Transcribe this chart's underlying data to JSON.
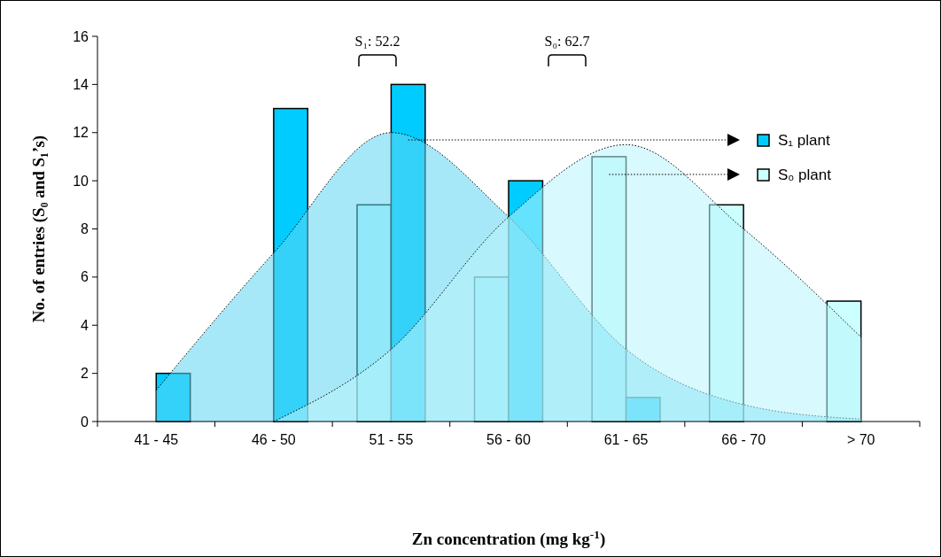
{
  "chart_data": {
    "type": "bar",
    "xlabel": "Zn concentration (mg kg$^{-1}$)",
    "ylabel": "No. of entries (S₀ and S₁’s)",
    "categories": [
      "41 - 45",
      "46 - 50",
      "51 - 55",
      "56 - 60",
      "61 - 65",
      "66 - 70",
      "> 70"
    ],
    "series": [
      {
        "name": "S₀ plant",
        "color": "#ccffff",
        "values": [
          0,
          0,
          9,
          6,
          11,
          9,
          5
        ]
      },
      {
        "name": "S₁ plant",
        "color": "#00ccff",
        "values": [
          2,
          13,
          14,
          10,
          1,
          0,
          0
        ]
      },
      {
        "type": "area",
        "color": "#5fd6f2",
        "values": [
          1.3,
          7,
          12,
          8.5,
          3,
          0.7,
          0.1
        ]
      },
      {
        "type": "area",
        "color": "#b8f4fc",
        "values": [
          null,
          0,
          3,
          8.5,
          11.5,
          8,
          3.5
        ]
      }
    ],
    "annotations": [
      "S₁: 52.2",
      "S₀: 62.7"
    ],
    "ylim": [
      0,
      16
    ],
    "yticks": [
      0,
      2,
      4,
      6,
      8,
      10,
      12,
      14,
      16
    ],
    "legend": "right",
    "grid": false
  }
}
